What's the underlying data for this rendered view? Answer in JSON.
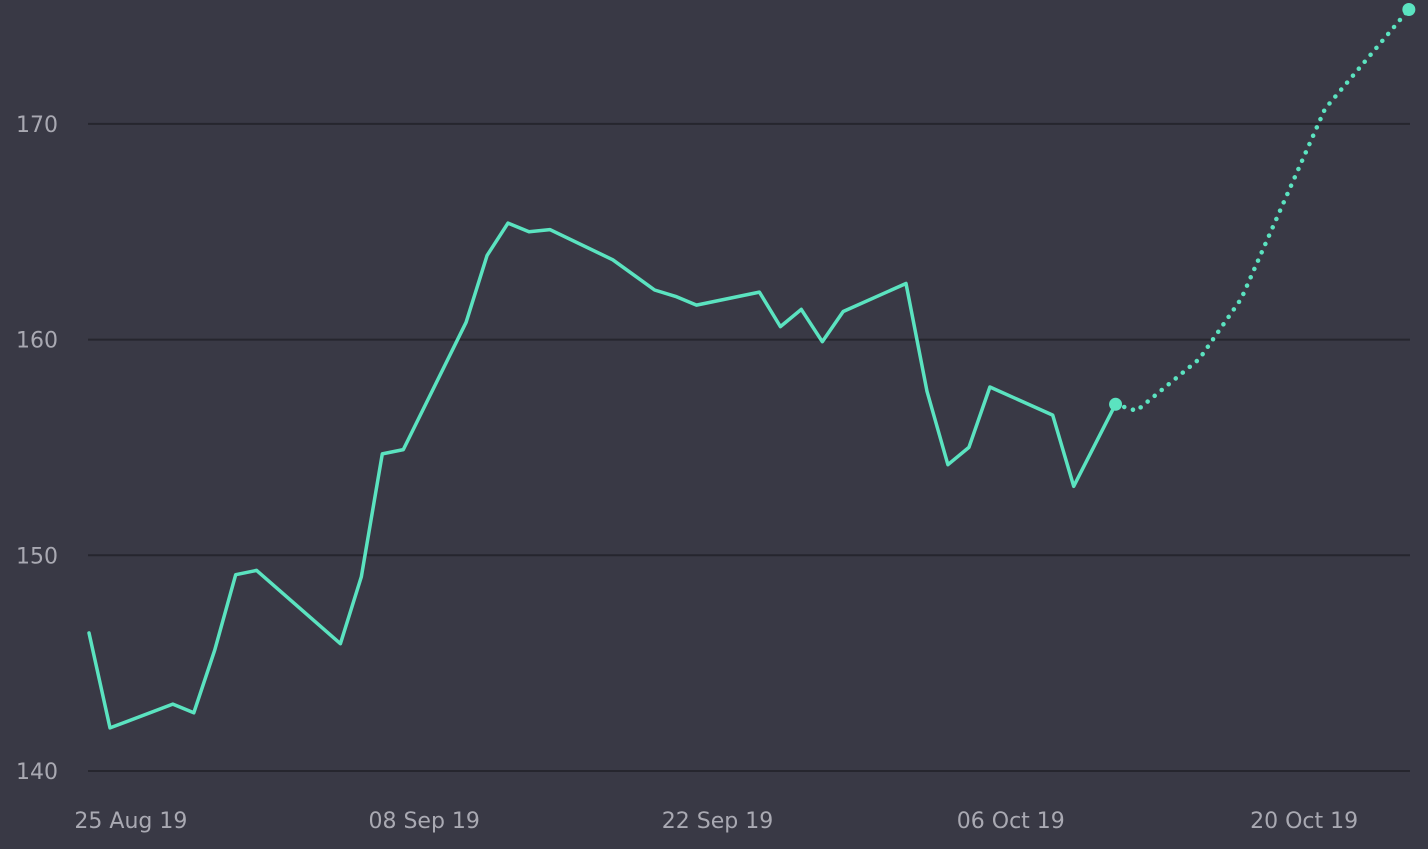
{
  "colors": {
    "background": "#393945",
    "grid": "#26262e",
    "line": "#5be3c0",
    "tick_text": "#a9a9b2"
  },
  "chart_data": {
    "type": "line",
    "title": "",
    "xlabel": "",
    "ylabel": "",
    "grid": true,
    "legend": "none",
    "x_range": [
      "2019-08-23",
      "2019-10-24"
    ],
    "ylim": [
      140,
      175
    ],
    "y_ticks": [
      140,
      150,
      160,
      170
    ],
    "y_tick_labels": [
      "140",
      "150",
      "160",
      "170"
    ],
    "x_ticks": [
      "2019-08-25",
      "2019-09-08",
      "2019-09-22",
      "2019-10-06",
      "2019-10-20"
    ],
    "x_tick_labels": [
      "25 Aug 19",
      "08 Sep 19",
      "22 Sep 19",
      "06 Oct 19",
      "20 Oct 19"
    ],
    "series": [
      {
        "style": "solid",
        "color": "#5be3c0",
        "end_marker": true,
        "points": [
          {
            "x": "2019-08-23",
            "y": 146.4
          },
          {
            "x": "2019-08-24",
            "y": 142.0
          },
          {
            "x": "2019-08-27",
            "y": 143.1
          },
          {
            "x": "2019-08-28",
            "y": 142.7
          },
          {
            "x": "2019-08-29",
            "y": 145.6
          },
          {
            "x": "2019-08-30",
            "y": 149.1
          },
          {
            "x": "2019-08-31",
            "y": 149.3
          },
          {
            "x": "2019-09-04",
            "y": 145.9
          },
          {
            "x": "2019-09-05",
            "y": 149.0
          },
          {
            "x": "2019-09-06",
            "y": 154.7
          },
          {
            "x": "2019-09-07",
            "y": 154.9
          },
          {
            "x": "2019-09-10",
            "y": 160.8
          },
          {
            "x": "2019-09-11",
            "y": 163.9
          },
          {
            "x": "2019-09-12",
            "y": 165.4
          },
          {
            "x": "2019-09-13",
            "y": 165.0
          },
          {
            "x": "2019-09-14",
            "y": 165.1
          },
          {
            "x": "2019-09-17",
            "y": 163.7
          },
          {
            "x": "2019-09-19",
            "y": 162.3
          },
          {
            "x": "2019-09-20",
            "y": 162.0
          },
          {
            "x": "2019-09-21",
            "y": 161.6
          },
          {
            "x": "2019-09-24",
            "y": 162.2
          },
          {
            "x": "2019-09-25",
            "y": 160.6
          },
          {
            "x": "2019-09-26",
            "y": 161.4
          },
          {
            "x": "2019-09-27",
            "y": 159.9
          },
          {
            "x": "2019-09-28",
            "y": 161.3
          },
          {
            "x": "2019-10-01",
            "y": 162.6
          },
          {
            "x": "2019-10-02",
            "y": 157.6
          },
          {
            "x": "2019-10-03",
            "y": 154.2
          },
          {
            "x": "2019-10-04",
            "y": 155.0
          },
          {
            "x": "2019-10-05",
            "y": 157.8
          },
          {
            "x": "2019-10-08",
            "y": 156.5
          },
          {
            "x": "2019-10-09",
            "y": 153.2
          },
          {
            "x": "2019-10-11",
            "y": 157.0
          }
        ]
      },
      {
        "style": "dotted",
        "color": "#5be3c0",
        "end_marker": true,
        "points": [
          {
            "x": "2019-10-11",
            "y": 157.0
          },
          {
            "x": "2019-10-12",
            "y": 156.7
          },
          {
            "x": "2019-10-15",
            "y": 159.1
          },
          {
            "x": "2019-10-17",
            "y": 161.9
          },
          {
            "x": "2019-10-19",
            "y": 166.3
          },
          {
            "x": "2019-10-21",
            "y": 170.7
          },
          {
            "x": "2019-10-25",
            "y": 175.3
          }
        ]
      }
    ]
  }
}
